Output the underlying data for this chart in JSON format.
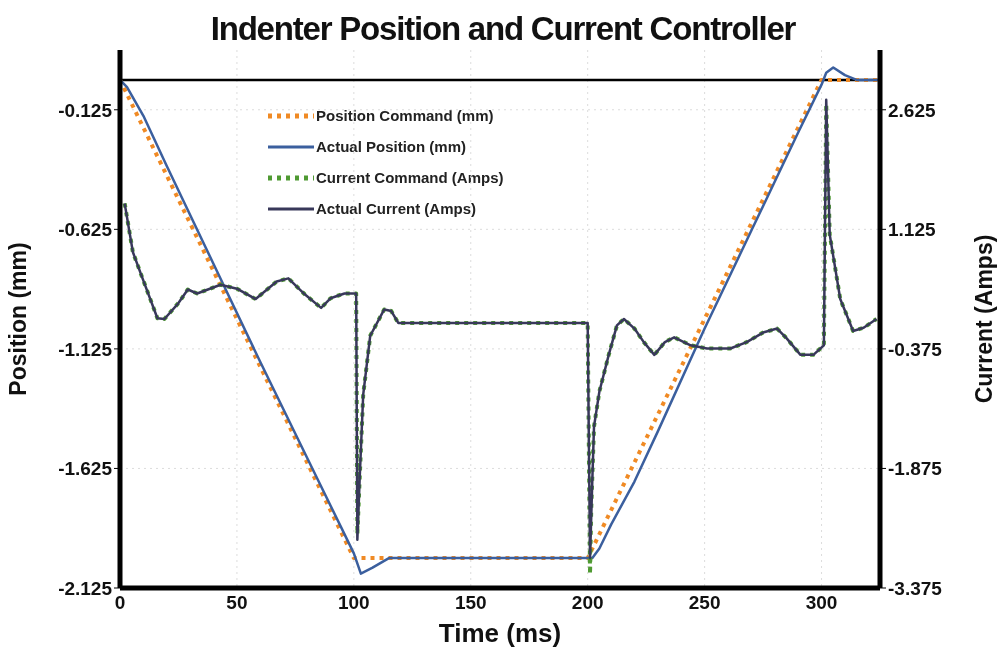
{
  "chart_data": {
    "type": "line",
    "title": "Indenter Position and Current Controller",
    "xlabel": "Time (ms)",
    "ylabel": "Position (mm)",
    "y2label": "Current (Amps)",
    "xlim": [
      0,
      325
    ],
    "xticks": [
      0,
      50,
      100,
      150,
      200,
      250,
      300
    ],
    "ylim": [
      -2.125,
      0.125
    ],
    "yticks": [
      -2.125,
      -1.625,
      -1.125,
      -0.625,
      -0.125
    ],
    "y2lim": [
      -3.375,
      3.375
    ],
    "y2ticks": [
      -3.375,
      -1.875,
      -0.375,
      1.125,
      2.625
    ],
    "grid": true,
    "legend": "top",
    "marker": "none",
    "ref_lines": [
      {
        "axis": "y",
        "value": 0,
        "color": "#000000"
      }
    ],
    "series": [
      {
        "name": "Position Command (mm)",
        "color": "#f08a24",
        "line_style": "dotted",
        "x": [
          0,
          100,
          200,
          300,
          325
        ],
        "values": [
          0,
          -2,
          -2,
          0,
          0
        ]
      },
      {
        "name": "Actual Position (mm)",
        "color": "#3b5f9e",
        "line_style": "solid",
        "x": [
          0,
          3,
          10,
          20,
          40,
          60,
          80,
          95,
          100,
          103,
          108,
          115,
          200,
          202,
          205,
          210,
          220,
          230,
          250,
          270,
          290,
          300,
          302,
          305,
          310,
          315,
          325
        ],
        "values": [
          0,
          -0.03,
          -0.15,
          -0.36,
          -0.77,
          -1.18,
          -1.58,
          -1.88,
          -1.98,
          -2.065,
          -2.04,
          -2.0,
          -2.0,
          -2.0,
          -1.96,
          -1.86,
          -1.68,
          -1.47,
          -1.04,
          -0.63,
          -0.22,
          -0.02,
          0.03,
          0.052,
          0.02,
          0,
          0
        ]
      },
      {
        "name": "Current Command (Amps)",
        "color": "#4f9a32",
        "line_style": "dotted",
        "axis": "y2",
        "x": [
          2,
          5.5,
          9,
          16,
          19,
          25,
          29,
          33,
          43,
          50,
          58,
          67,
          72,
          79,
          86,
          90,
          96,
          101,
          101.5,
          102.5,
          104,
          107,
          113,
          116,
          119,
          200,
          201,
          201.5,
          202.7,
          205,
          209,
          212.5,
          215.5,
          220,
          224,
          228.5,
          233,
          237,
          244,
          251,
          261,
          268,
          275,
          281,
          285,
          291,
          296.5,
          301,
          302,
          303.5,
          308,
          313.5,
          318,
          323.5
        ],
        "values": [
          1.45,
          0.84,
          0.56,
          0.01,
          0,
          0.2,
          0.37,
          0.32,
          0.43,
          0.38,
          0.25,
          0.47,
          0.51,
          0.31,
          0.14,
          0.26,
          0.32,
          0.32,
          -2.7,
          -2.0,
          -0.95,
          -0.21,
          0.12,
          0.1,
          -0.05,
          -0.05,
          -3.2,
          -2.4,
          -1.35,
          -0.91,
          -0.45,
          -0.08,
          0,
          -0.12,
          -0.29,
          -0.45,
          -0.29,
          -0.23,
          -0.33,
          -0.37,
          -0.37,
          -0.29,
          -0.17,
          -0.12,
          -0.24,
          -0.45,
          -0.45,
          -0.33,
          2.7,
          1.06,
          0.25,
          -0.15,
          -0.11,
          0
        ]
      },
      {
        "name": "Actual Current (Amps)",
        "color": "#38385a",
        "line_style": "solid",
        "axis": "y2",
        "x": [
          2,
          5.5,
          9,
          16,
          19,
          25,
          29,
          33,
          43,
          50,
          58,
          67,
          72,
          79,
          86,
          90,
          96,
          101,
          101.5,
          102.5,
          104,
          107,
          113,
          116,
          119,
          200,
          201,
          202,
          202.7,
          205,
          209,
          212.5,
          215.5,
          220,
          224,
          228.5,
          233,
          237,
          244,
          251,
          261,
          268,
          275,
          281,
          285,
          291,
          296.5,
          301,
          302,
          303.5,
          308,
          313.5,
          318,
          323.5
        ],
        "values": [
          1.45,
          0.84,
          0.56,
          0.01,
          0,
          0.2,
          0.37,
          0.32,
          0.43,
          0.38,
          0.25,
          0.47,
          0.51,
          0.31,
          0.14,
          0.26,
          0.32,
          0.32,
          -2.77,
          -2.0,
          -0.95,
          -0.21,
          0.12,
          0.1,
          -0.05,
          -0.05,
          -3.0,
          -2.0,
          -1.35,
          -0.91,
          -0.45,
          -0.08,
          0,
          -0.12,
          -0.29,
          -0.45,
          -0.29,
          -0.23,
          -0.33,
          -0.37,
          -0.37,
          -0.29,
          -0.17,
          -0.12,
          -0.24,
          -0.45,
          -0.45,
          -0.33,
          2.75,
          1.06,
          0.25,
          -0.15,
          -0.11,
          0
        ]
      }
    ]
  }
}
